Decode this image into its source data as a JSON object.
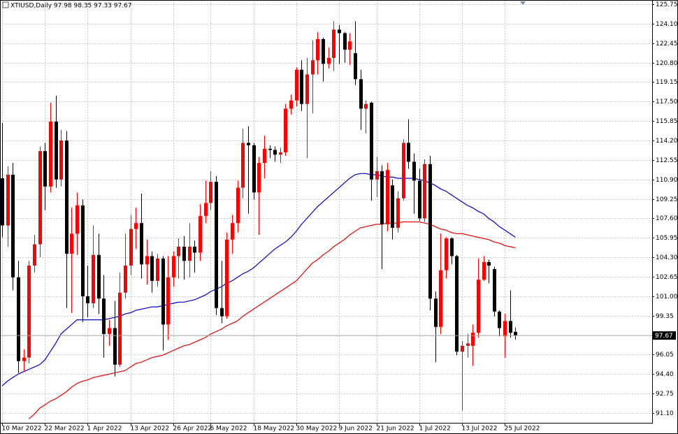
{
  "chart_data": {
    "type": "candlestick",
    "title": "XTIUSD,Daily  97.98 98.35 97.33 97.67",
    "categories": [
      "10 Mar 2022",
      null,
      null,
      null,
      null,
      null,
      null,
      null,
      "22 Mar 2022",
      null,
      null,
      null,
      null,
      null,
      null,
      null,
      "1 Apr 2022",
      null,
      null,
      null,
      null,
      null,
      null,
      null,
      "13 Apr 2022",
      null,
      null,
      null,
      null,
      null,
      null,
      null,
      "26 Apr 2022",
      null,
      null,
      null,
      null,
      null,
      null,
      "6 May 2022",
      null,
      null,
      null,
      null,
      null,
      null,
      null,
      "18 May 2022",
      null,
      null,
      null,
      null,
      null,
      null,
      null,
      "30 May 2022",
      null,
      null,
      null,
      null,
      null,
      null,
      null,
      "9 Jun 2022",
      null,
      null,
      null,
      null,
      null,
      null,
      "21 Jun 2022",
      null,
      null,
      null,
      null,
      null,
      null,
      null,
      "1 Jul 2022",
      null,
      null,
      null,
      null,
      null,
      null,
      null,
      "13 Jul 2022",
      null,
      null,
      null,
      null,
      null,
      null,
      null,
      "25 Jul 2022",
      null,
      null
    ],
    "open": [
      111,
      107,
      111.3,
      102.6,
      95.5,
      95.8,
      103.6,
      105.4,
      113.3,
      110.3,
      115.8,
      110.9,
      114.2,
      104.6,
      106.3,
      108.7,
      101,
      100.4,
      104.5,
      100.8,
      97.8,
      98.3,
      95.2,
      101.3,
      103.6,
      106.7,
      107.2,
      103.7,
      104.4,
      102.3,
      104.2,
      98.6,
      102.6,
      104.4,
      105.2,
      104,
      105.2,
      104.7,
      107.8,
      108.9,
      110.7,
      100,
      99.3,
      105.8,
      107.2,
      110.2,
      114,
      113.8,
      109.8,
      112.3,
      113.5,
      113.4,
      113,
      113.2,
      116.9,
      117.6,
      120.2,
      117.3,
      119.8,
      121,
      122.8,
      120.7,
      121.2,
      123.6,
      123.3,
      121.9,
      121.6,
      119.4,
      116.9,
      117.4,
      110.9,
      111.6,
      107.1,
      110.4,
      106.8,
      109.3,
      114,
      112.4,
      110.8,
      107.6,
      112.2,
      100.8,
      98.4,
      103.2,
      105.9,
      104.4,
      96.3,
      96.8,
      96.8,
      97.9,
      102.4,
      103.9,
      103.3,
      99.7,
      97.6,
      98.9,
      97.98
    ],
    "high": [
      115.7,
      112,
      112.3,
      104,
      96.5,
      104,
      106.2,
      113.7,
      114,
      117.4,
      118,
      115.1,
      115,
      108.5,
      109.8,
      109.2,
      103.6,
      107,
      106.3,
      102.8,
      99,
      100.6,
      103,
      106.3,
      107.9,
      108.5,
      109.7,
      105.8,
      104.8,
      104.6,
      104.4,
      104.4,
      104.8,
      105.9,
      106.1,
      107.2,
      105.7,
      108.8,
      110.8,
      111.6,
      111.2,
      104,
      106.4,
      107.9,
      110.8,
      115.2,
      115.4,
      114,
      112.8,
      114.6,
      113.8,
      113.7,
      113.6,
      117.3,
      118.1,
      120.4,
      121,
      121.2,
      122.7,
      123.4,
      122.9,
      122.1,
      124.3,
      124,
      123.4,
      123.3,
      124.3,
      120.2,
      117.6,
      117.5,
      112.8,
      112.1,
      112.3,
      110.9,
      109.9,
      114.3,
      116,
      113.1,
      111.8,
      112.6,
      112.9,
      101.4,
      106.3,
      106,
      106,
      104.5,
      97.2,
      97.8,
      98.6,
      104.2,
      104.4,
      104.1,
      103.5,
      99.8,
      99.5,
      101.5,
      98.35
    ],
    "low": [
      106,
      105.2,
      101.5,
      94.5,
      94.6,
      95.3,
      103,
      104.3,
      108.3,
      109.8,
      110.2,
      110.3,
      100,
      99.6,
      104.5,
      98.8,
      99.2,
      100,
      99.5,
      95.8,
      96.8,
      94.2,
      95,
      100.8,
      102.8,
      105,
      102.5,
      102,
      101.3,
      101.8,
      96.4,
      97.3,
      101.8,
      102.5,
      102.4,
      102.6,
      103,
      104,
      107.2,
      108.3,
      99.4,
      98.7,
      99.1,
      104.6,
      106.4,
      109.3,
      108,
      109.2,
      106.2,
      111,
      112.7,
      112.4,
      112.3,
      112.9,
      116.4,
      117.1,
      116.7,
      112.7,
      116.5,
      119.8,
      119.2,
      120.3,
      120.1,
      120.7,
      120.8,
      120.6,
      118.9,
      115.1,
      114.8,
      109.1,
      109.4,
      103.3,
      106.5,
      105.8,
      106.4,
      109.1,
      111.8,
      108,
      107.4,
      107.3,
      99.8,
      95.4,
      97.8,
      102.5,
      103.7,
      96,
      91.3,
      95.8,
      95.1,
      97.5,
      102.3,
      102.1,
      99.3,
      97.6,
      95.8,
      97.5,
      97.33
    ],
    "close": [
      107,
      111.3,
      102.6,
      95.5,
      95.8,
      103.6,
      105.4,
      113.3,
      110.3,
      115.8,
      110.9,
      114.2,
      104.6,
      106.3,
      108.7,
      101,
      100.4,
      104.5,
      100.8,
      97.8,
      98.3,
      95.2,
      101.3,
      103.6,
      106.7,
      107.2,
      103.7,
      104.4,
      102.3,
      104.2,
      98.6,
      102.6,
      104.4,
      105.2,
      104,
      105.2,
      104.7,
      107.8,
      108.9,
      110.7,
      100,
      99.3,
      105.8,
      107.2,
      110.2,
      114,
      113.8,
      109.8,
      112.3,
      113.5,
      113.4,
      113,
      113.2,
      116.9,
      117.6,
      120.2,
      117.3,
      119.8,
      121,
      122.8,
      120.7,
      121.2,
      123.6,
      123.3,
      121.9,
      122.6,
      119.4,
      116.9,
      117.3,
      110.9,
      111.6,
      107.1,
      111.7,
      106.8,
      109.3,
      114,
      112.4,
      110.8,
      107.6,
      112.2,
      100.8,
      98.4,
      103.2,
      105.9,
      104.4,
      96.3,
      96.8,
      97,
      97.9,
      102.4,
      103.9,
      103.6,
      99.7,
      98.3,
      98.9,
      97.9,
      97.67
    ],
    "up_color": "#ff0000",
    "down_color": "#000000",
    "lines": [
      {
        "color": "#0000cc",
        "values": [
          93.4,
          93.8,
          94.1,
          94.4,
          94.6,
          94.8,
          95,
          95.2,
          95.6,
          96.3,
          97,
          97.8,
          98.2,
          98.6,
          99,
          99,
          99,
          99,
          99,
          99,
          99.1,
          99.2,
          99.3,
          99.5,
          99.6,
          99.8,
          99.9,
          100,
          100.1,
          100.1,
          100.2,
          100.3,
          100.4,
          100.5,
          100.5,
          100.6,
          100.7,
          100.9,
          101.1,
          101.4,
          101.6,
          101.8,
          102.1,
          102.3,
          102.6,
          102.9,
          103.1,
          103.4,
          103.8,
          104.2,
          104.6,
          105,
          105.3,
          105.6,
          106,
          106.5,
          107.1,
          107.6,
          108.1,
          108.6,
          109,
          109.4,
          109.8,
          110.2,
          110.6,
          111,
          111.3,
          111.4,
          111.4,
          111.3,
          111.3,
          111.2,
          111.1,
          111.1,
          111,
          111,
          111,
          111,
          110.9,
          110.8,
          110.6,
          110.4,
          110.1,
          109.9,
          109.6,
          109.3,
          109,
          108.7,
          108.5,
          108.2,
          108,
          107.6,
          107.3,
          106.9,
          106.6,
          106.3,
          106
        ]
      },
      {
        "color": "#ee0000",
        "values": [
          null,
          null,
          null,
          null,
          null,
          90.6,
          91,
          91.5,
          91.8,
          92.1,
          92.3,
          92.6,
          92.9,
          93.3,
          93.6,
          93.8,
          93.9,
          94.1,
          94.2,
          94.3,
          94.4,
          94.5,
          94.6,
          94.7,
          95,
          95.3,
          95.4,
          95.6,
          95.8,
          95.9,
          96,
          96.2,
          96.4,
          96.6,
          96.8,
          96.9,
          97.1,
          97.3,
          97.5,
          97.8,
          98,
          98.2,
          98.5,
          98.7,
          98.9,
          99.3,
          99.6,
          99.9,
          100.2,
          100.5,
          100.8,
          101.1,
          101.4,
          101.7,
          102,
          102.3,
          102.8,
          103.3,
          103.8,
          104.1,
          104.5,
          104.8,
          105.2,
          105.5,
          105.8,
          106.2,
          106.5,
          106.8,
          106.9,
          107,
          107.1,
          107.1,
          107.2,
          107.2,
          107.2,
          107.3,
          107.3,
          107.3,
          107.3,
          107.2,
          107.1,
          106.9,
          106.7,
          106.6,
          106.4,
          106.3,
          106.3,
          106.2,
          106.1,
          106,
          105.9,
          105.8,
          105.6,
          105.5,
          105.3,
          105.2,
          105.1
        ]
      }
    ],
    "current_price": 97.67,
    "ylim": [
      90.27,
      126.11
    ],
    "yticks": [
      125.75,
      {
        "value": 124.1,
        "label": "124.10"
      },
      122.45,
      {
        "value": 120.8,
        "label": "120.80"
      },
      119.15,
      {
        "value": 117.5,
        "label": "117.50"
      },
      115.85,
      {
        "value": 114.2,
        "label": "114.20"
      },
      112.55,
      {
        "value": 110.9,
        "label": "110.90"
      },
      109.25,
      {
        "value": 107.6,
        "label": "107.60"
      },
      105.95,
      {
        "value": 104.3,
        "label": "104.30"
      },
      102.65,
      {
        "value": 101,
        "label": "101.00"
      },
      99.35,
      96.05,
      {
        "value": 94.4,
        "label": "94.40"
      },
      92.75,
      {
        "value": 91.1,
        "label": "91.10"
      }
    ],
    "grid": true
  }
}
